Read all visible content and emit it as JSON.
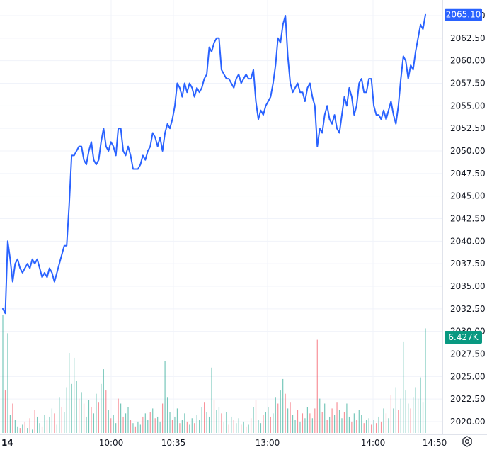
{
  "chart_data": {
    "type": "line",
    "y_ticks": [
      "2020.00",
      "2022.50",
      "2025.00",
      "2027.50",
      "2030.00",
      "2032.50",
      "2035.00",
      "2037.50",
      "2040.00",
      "2042.50",
      "2045.00",
      "2047.50",
      "2050.00",
      "2052.50",
      "2055.00",
      "2057.50",
      "2060.00",
      "2062.50",
      "2065.00"
    ],
    "ylim": [
      2019.5,
      2066.0
    ],
    "x_ticks": [
      {
        "label": "14",
        "t": 0
      },
      {
        "label": "10:00",
        "t": 30
      },
      {
        "label": "10:35",
        "t": 65
      },
      {
        "label": "13:00",
        "t": 110
      },
      {
        "label": "14:00",
        "t": 160
      },
      {
        "label": "14:50",
        "t": 210
      }
    ],
    "x_range": [
      0,
      210
    ],
    "last_price": {
      "label": "2065.10",
      "value": 2065.1,
      "color": "#2962ff"
    },
    "last_volume": {
      "label": "6.427K",
      "color": "#089981"
    },
    "line_color": "#2962ff",
    "up_color": "#089981",
    "down_color": "#f23645",
    "price": [
      [
        0,
        2032.5
      ],
      [
        1,
        2032.0
      ],
      [
        2,
        2040.0
      ],
      [
        3,
        2038.0
      ],
      [
        4,
        2035.5
      ],
      [
        5,
        2037.5
      ],
      [
        6,
        2038.0
      ],
      [
        7,
        2037.0
      ],
      [
        8,
        2036.5
      ],
      [
        9,
        2037.0
      ],
      [
        10,
        2037.5
      ],
      [
        11,
        2037.0
      ],
      [
        12,
        2038.0
      ],
      [
        13,
        2037.5
      ],
      [
        14,
        2038.0
      ],
      [
        15,
        2037.0
      ],
      [
        16,
        2036.0
      ],
      [
        17,
        2036.5
      ],
      [
        18,
        2036.0
      ],
      [
        19,
        2037.0
      ],
      [
        20,
        2036.5
      ],
      [
        21,
        2035.5
      ],
      [
        22,
        2036.5
      ],
      [
        23,
        2037.5
      ],
      [
        24,
        2038.5
      ],
      [
        25,
        2039.5
      ],
      [
        26,
        2039.5
      ],
      [
        27,
        2044.0
      ],
      [
        28,
        2049.5
      ],
      [
        29,
        2049.5
      ],
      [
        30,
        2050.0
      ],
      [
        31,
        2050.5
      ],
      [
        32,
        2050.5
      ],
      [
        33,
        2049.0
      ],
      [
        34,
        2048.5
      ],
      [
        35,
        2050.0
      ],
      [
        36,
        2051.0
      ],
      [
        37,
        2049.0
      ],
      [
        38,
        2048.5
      ],
      [
        39,
        2049.0
      ],
      [
        40,
        2051.0
      ],
      [
        41,
        2052.5
      ],
      [
        42,
        2050.5
      ],
      [
        43,
        2050.0
      ],
      [
        44,
        2051.0
      ],
      [
        45,
        2050.5
      ],
      [
        46,
        2049.5
      ],
      [
        47,
        2052.5
      ],
      [
        48,
        2052.5
      ],
      [
        49,
        2050.0
      ],
      [
        50,
        2049.5
      ],
      [
        51,
        2050.5
      ],
      [
        52,
        2049.5
      ],
      [
        53,
        2048.0
      ],
      [
        54,
        2048.0
      ],
      [
        55,
        2048.0
      ],
      [
        56,
        2048.5
      ],
      [
        57,
        2049.5
      ],
      [
        58,
        2049.0
      ],
      [
        59,
        2050.0
      ],
      [
        60,
        2050.5
      ],
      [
        61,
        2052.0
      ],
      [
        62,
        2051.5
      ],
      [
        63,
        2050.5
      ],
      [
        64,
        2051.5
      ],
      [
        65,
        2050.0
      ],
      [
        66,
        2052.0
      ],
      [
        67,
        2053.0
      ],
      [
        68,
        2052.5
      ],
      [
        69,
        2053.5
      ],
      [
        70,
        2055.0
      ],
      [
        71,
        2057.5
      ],
      [
        72,
        2057.0
      ],
      [
        73,
        2056.0
      ],
      [
        74,
        2057.5
      ],
      [
        75,
        2056.5
      ],
      [
        76,
        2057.5
      ],
      [
        77,
        2057.0
      ],
      [
        78,
        2056.0
      ],
      [
        79,
        2057.0
      ],
      [
        80,
        2056.5
      ],
      [
        81,
        2057.0
      ],
      [
        82,
        2058.0
      ],
      [
        83,
        2058.5
      ],
      [
        84,
        2061.5
      ],
      [
        85,
        2061.0
      ],
      [
        86,
        2062.0
      ],
      [
        87,
        2062.5
      ],
      [
        88,
        2062.5
      ],
      [
        89,
        2059.0
      ],
      [
        90,
        2058.5
      ],
      [
        91,
        2058.0
      ],
      [
        92,
        2058.0
      ],
      [
        93,
        2057.5
      ],
      [
        94,
        2057.0
      ],
      [
        95,
        2058.0
      ],
      [
        96,
        2058.5
      ],
      [
        97,
        2057.5
      ],
      [
        98,
        2058.0
      ],
      [
        99,
        2058.5
      ],
      [
        100,
        2058.0
      ],
      [
        101,
        2058.0
      ],
      [
        102,
        2059.0
      ],
      [
        103,
        2055.5
      ],
      [
        104,
        2053.5
      ],
      [
        105,
        2054.5
      ],
      [
        106,
        2054.0
      ],
      [
        107,
        2055.0
      ],
      [
        108,
        2055.5
      ],
      [
        109,
        2056.0
      ],
      [
        110,
        2057.5
      ],
      [
        111,
        2059.5
      ],
      [
        112,
        2062.5
      ],
      [
        113,
        2062.0
      ],
      [
        114,
        2064.0
      ],
      [
        115,
        2065.0
      ],
      [
        116,
        2060.5
      ],
      [
        117,
        2057.5
      ],
      [
        118,
        2056.5
      ],
      [
        119,
        2057.0
      ],
      [
        120,
        2057.5
      ],
      [
        121,
        2056.5
      ],
      [
        122,
        2056.5
      ],
      [
        123,
        2055.5
      ],
      [
        124,
        2057.0
      ],
      [
        125,
        2057.5
      ],
      [
        126,
        2056.0
      ],
      [
        127,
        2055.0
      ],
      [
        128,
        2050.5
      ],
      [
        129,
        2052.5
      ],
      [
        130,
        2052.0
      ],
      [
        131,
        2054.0
      ],
      [
        132,
        2055.0
      ],
      [
        133,
        2053.5
      ],
      [
        134,
        2053.0
      ],
      [
        135,
        2054.0
      ],
      [
        136,
        2052.5
      ],
      [
        137,
        2052.0
      ],
      [
        138,
        2054.0
      ],
      [
        139,
        2056.0
      ],
      [
        140,
        2055.0
      ],
      [
        141,
        2057.0
      ],
      [
        142,
        2056.0
      ],
      [
        143,
        2054.0
      ],
      [
        144,
        2055.0
      ],
      [
        145,
        2057.5
      ],
      [
        146,
        2058.0
      ],
      [
        147,
        2056.5
      ],
      [
        148,
        2056.5
      ],
      [
        149,
        2058.0
      ],
      [
        150,
        2058.0
      ],
      [
        151,
        2055.0
      ],
      [
        152,
        2054.0
      ],
      [
        153,
        2054.0
      ],
      [
        154,
        2053.5
      ],
      [
        155,
        2054.5
      ],
      [
        156,
        2053.5
      ],
      [
        157,
        2054.5
      ],
      [
        158,
        2055.5
      ],
      [
        159,
        2054.0
      ],
      [
        160,
        2053.0
      ],
      [
        161,
        2055.0
      ],
      [
        162,
        2058.0
      ],
      [
        163,
        2060.5
      ],
      [
        164,
        2060.0
      ],
      [
        165,
        2058.0
      ],
      [
        166,
        2059.5
      ],
      [
        167,
        2059.0
      ],
      [
        168,
        2061.0
      ],
      [
        169,
        2062.5
      ],
      [
        170,
        2064.0
      ],
      [
        171,
        2063.5
      ],
      [
        172,
        2065.1
      ]
    ],
    "volume": [
      [
        0,
        7.2,
        1
      ],
      [
        1,
        2.6,
        0
      ],
      [
        2,
        6.1,
        1
      ],
      [
        3,
        1.1,
        1
      ],
      [
        4,
        1.8,
        0
      ],
      [
        5,
        0.8,
        1
      ],
      [
        6,
        0.4,
        1
      ],
      [
        7,
        0.3,
        0
      ],
      [
        8,
        0.5,
        1
      ],
      [
        9,
        0.7,
        0
      ],
      [
        10,
        0.3,
        1
      ],
      [
        11,
        0.9,
        0
      ],
      [
        12,
        0.2,
        1
      ],
      [
        13,
        1.4,
        0
      ],
      [
        14,
        1.0,
        1
      ],
      [
        15,
        0.6,
        1
      ],
      [
        16,
        0.4,
        0
      ],
      [
        17,
        1.1,
        1
      ],
      [
        18,
        0.8,
        0
      ],
      [
        19,
        1.0,
        1
      ],
      [
        20,
        1.5,
        1
      ],
      [
        21,
        1.2,
        0
      ],
      [
        22,
        0.5,
        1
      ],
      [
        23,
        2.2,
        1
      ],
      [
        24,
        1.6,
        0
      ],
      [
        25,
        1.3,
        1
      ],
      [
        26,
        2.8,
        1
      ],
      [
        27,
        4.9,
        1
      ],
      [
        28,
        3.0,
        1
      ],
      [
        29,
        4.6,
        1
      ],
      [
        30,
        3.2,
        1
      ],
      [
        31,
        2.1,
        0
      ],
      [
        32,
        2.5,
        1
      ],
      [
        33,
        1.8,
        0
      ],
      [
        34,
        1.0,
        1
      ],
      [
        35,
        2.0,
        1
      ],
      [
        36,
        1.6,
        0
      ],
      [
        37,
        1.2,
        1
      ],
      [
        38,
        2.4,
        1
      ],
      [
        39,
        1.9,
        0
      ],
      [
        40,
        3.0,
        1
      ],
      [
        41,
        3.9,
        1
      ],
      [
        42,
        2.6,
        0
      ],
      [
        43,
        1.4,
        1
      ],
      [
        44,
        0.9,
        0
      ],
      [
        45,
        1.1,
        1
      ],
      [
        46,
        0.6,
        1
      ],
      [
        47,
        2.1,
        0
      ],
      [
        48,
        1.8,
        1
      ],
      [
        49,
        1.0,
        0
      ],
      [
        50,
        1.2,
        1
      ],
      [
        51,
        1.6,
        1
      ],
      [
        52,
        0.8,
        0
      ],
      [
        53,
        0.6,
        1
      ],
      [
        54,
        0.4,
        0
      ],
      [
        55,
        0.7,
        1
      ],
      [
        56,
        0.5,
        1
      ],
      [
        57,
        1.0,
        0
      ],
      [
        58,
        1.2,
        1
      ],
      [
        59,
        0.8,
        1
      ],
      [
        60,
        1.3,
        0
      ],
      [
        61,
        1.5,
        1
      ],
      [
        62,
        0.9,
        0
      ],
      [
        63,
        1.0,
        1
      ],
      [
        64,
        0.7,
        1
      ],
      [
        65,
        1.8,
        0
      ],
      [
        66,
        4.4,
        1
      ],
      [
        67,
        2.2,
        1
      ],
      [
        68,
        1.3,
        1
      ],
      [
        69,
        0.8,
        0
      ],
      [
        70,
        1.0,
        1
      ],
      [
        71,
        1.5,
        1
      ],
      [
        72,
        0.6,
        0
      ],
      [
        73,
        0.8,
        1
      ],
      [
        74,
        1.2,
        1
      ],
      [
        75,
        0.7,
        0
      ],
      [
        76,
        0.5,
        1
      ],
      [
        77,
        0.9,
        1
      ],
      [
        78,
        0.6,
        0
      ],
      [
        79,
        1.1,
        1
      ],
      [
        80,
        0.8,
        1
      ],
      [
        81,
        1.6,
        1
      ],
      [
        82,
        1.9,
        0
      ],
      [
        83,
        1.3,
        1
      ],
      [
        84,
        1.0,
        1
      ],
      [
        85,
        4.0,
        1
      ],
      [
        86,
        2.0,
        0
      ],
      [
        87,
        1.4,
        1
      ],
      [
        88,
        1.6,
        1
      ],
      [
        89,
        1.2,
        0
      ],
      [
        90,
        0.7,
        1
      ],
      [
        91,
        1.3,
        1
      ],
      [
        92,
        0.5,
        0
      ],
      [
        93,
        1.0,
        1
      ],
      [
        94,
        0.8,
        0
      ],
      [
        95,
        0.6,
        1
      ],
      [
        96,
        0.9,
        1
      ],
      [
        97,
        0.5,
        0
      ],
      [
        98,
        0.7,
        1
      ],
      [
        99,
        0.4,
        0
      ],
      [
        100,
        0.5,
        1
      ],
      [
        101,
        0.9,
        0
      ],
      [
        102,
        1.6,
        1
      ],
      [
        103,
        2.0,
        0
      ],
      [
        104,
        0.8,
        1
      ],
      [
        105,
        0.6,
        1
      ],
      [
        106,
        1.1,
        0
      ],
      [
        107,
        1.3,
        1
      ],
      [
        108,
        1.6,
        1
      ],
      [
        109,
        1.0,
        0
      ],
      [
        110,
        1.2,
        1
      ],
      [
        111,
        2.2,
        1
      ],
      [
        112,
        1.8,
        0
      ],
      [
        113,
        2.6,
        1
      ],
      [
        114,
        3.3,
        1
      ],
      [
        115,
        2.4,
        0
      ],
      [
        116,
        1.5,
        1
      ],
      [
        117,
        1.9,
        0
      ],
      [
        118,
        1.1,
        1
      ],
      [
        119,
        0.8,
        1
      ],
      [
        120,
        1.4,
        0
      ],
      [
        121,
        0.7,
        1
      ],
      [
        122,
        1.2,
        0
      ],
      [
        123,
        0.9,
        1
      ],
      [
        124,
        1.6,
        1
      ],
      [
        125,
        1.2,
        0
      ],
      [
        126,
        0.9,
        1
      ],
      [
        127,
        1.5,
        0
      ],
      [
        128,
        5.7,
        0
      ],
      [
        129,
        2.1,
        1
      ],
      [
        130,
        1.3,
        0
      ],
      [
        131,
        1.8,
        1
      ],
      [
        132,
        0.8,
        0
      ],
      [
        133,
        1.0,
        1
      ],
      [
        134,
        1.5,
        0
      ],
      [
        135,
        1.1,
        1
      ],
      [
        136,
        1.9,
        0
      ],
      [
        137,
        1.4,
        1
      ],
      [
        138,
        0.9,
        1
      ],
      [
        139,
        1.3,
        0
      ],
      [
        140,
        1.8,
        1
      ],
      [
        141,
        1.0,
        1
      ],
      [
        142,
        0.7,
        0
      ],
      [
        143,
        1.2,
        1
      ],
      [
        144,
        0.8,
        0
      ],
      [
        145,
        1.4,
        1
      ],
      [
        146,
        1.1,
        1
      ],
      [
        147,
        0.6,
        0
      ],
      [
        148,
        0.8,
        1
      ],
      [
        149,
        0.9,
        1
      ],
      [
        150,
        0.5,
        0
      ],
      [
        151,
        0.8,
        1
      ],
      [
        152,
        0.6,
        0
      ],
      [
        153,
        1.0,
        1
      ],
      [
        154,
        0.7,
        0
      ],
      [
        155,
        1.5,
        1
      ],
      [
        156,
        1.2,
        0
      ],
      [
        157,
        0.9,
        1
      ],
      [
        158,
        2.3,
        0
      ],
      [
        159,
        1.5,
        1
      ],
      [
        160,
        2.8,
        1
      ],
      [
        161,
        1.4,
        0
      ],
      [
        162,
        2.1,
        1
      ],
      [
        163,
        5.6,
        1
      ],
      [
        164,
        2.6,
        1
      ],
      [
        165,
        1.8,
        1
      ],
      [
        166,
        1.5,
        0
      ],
      [
        167,
        2.2,
        1
      ],
      [
        168,
        2.8,
        1
      ],
      [
        169,
        2.1,
        1
      ],
      [
        170,
        3.4,
        1
      ],
      [
        171,
        1.9,
        1
      ],
      [
        172,
        6.4,
        1
      ]
    ]
  }
}
